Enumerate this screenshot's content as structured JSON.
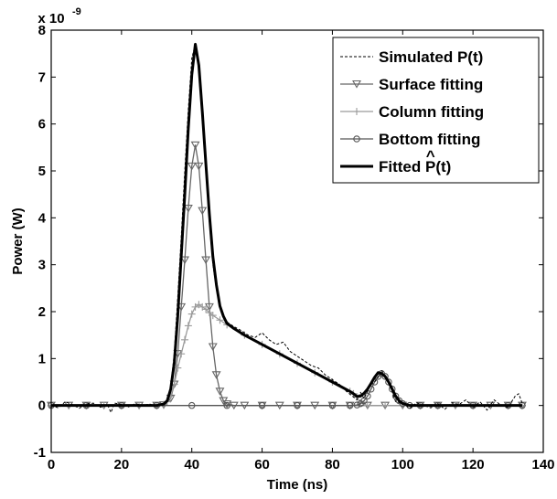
{
  "chart_data": {
    "type": "line",
    "xlabel": "Time (ns)",
    "ylabel": "Power (W)",
    "y_multiplier_label": "x 10",
    "y_multiplier_exponent": "-9",
    "xlim": [
      0,
      140
    ],
    "ylim": [
      -1,
      8
    ],
    "xticks": [
      0,
      20,
      40,
      60,
      80,
      100,
      120,
      140
    ],
    "yticks": [
      -1,
      0,
      1,
      2,
      3,
      4,
      5,
      6,
      7,
      8
    ],
    "grid": false,
    "legend_position": "top-right",
    "series": [
      {
        "name": "Simulated P(t)",
        "style": "dashed",
        "color": "#000000",
        "x": [
          0,
          2,
          4,
          6,
          8,
          10,
          12,
          14,
          16,
          17,
          18,
          20,
          22,
          24,
          26,
          28,
          30,
          32,
          33,
          34,
          35,
          36,
          37,
          38,
          39,
          40,
          41,
          42,
          43,
          44,
          45,
          46,
          47,
          48,
          49,
          50,
          52,
          54,
          56,
          58,
          60,
          62,
          64,
          66,
          68,
          70,
          72,
          74,
          76,
          78,
          80,
          82,
          84,
          86,
          87,
          88,
          89,
          90,
          91,
          92,
          93,
          94,
          95,
          96,
          97,
          98,
          100,
          102,
          104,
          106,
          108,
          110,
          112,
          114,
          116,
          118,
          120,
          122,
          124,
          126,
          128,
          130,
          132,
          133,
          134
        ],
        "y": [
          0.0,
          -0.05,
          0.08,
          0.02,
          -0.06,
          0.03,
          0.05,
          -0.04,
          0.02,
          -0.15,
          0.05,
          0.02,
          -0.03,
          0.04,
          0.0,
          0.03,
          -0.02,
          0.05,
          0.12,
          0.4,
          1.1,
          2.3,
          3.6,
          5.0,
          6.3,
          7.4,
          7.7,
          7.3,
          6.3,
          5.1,
          3.9,
          3.0,
          2.5,
          2.1,
          1.9,
          1.78,
          1.68,
          1.6,
          1.5,
          1.45,
          1.55,
          1.4,
          1.3,
          1.35,
          1.15,
          1.05,
          0.95,
          0.85,
          0.8,
          0.65,
          0.55,
          0.45,
          0.3,
          0.18,
          0.12,
          0.28,
          0.15,
          0.3,
          0.45,
          0.5,
          0.6,
          0.75,
          0.6,
          0.48,
          0.3,
          0.08,
          0.05,
          -0.06,
          0.06,
          0.0,
          -0.05,
          0.04,
          -0.08,
          0.06,
          0.02,
          0.12,
          -0.05,
          0.08,
          -0.1,
          0.12,
          0.0,
          -0.04,
          0.2,
          0.25,
          0.05
        ]
      },
      {
        "name": "Surface fitting",
        "style": "solid",
        "marker": "triangle-down",
        "color": "#666666",
        "x": [
          0,
          5,
          10,
          15,
          20,
          25,
          30,
          32,
          34,
          35,
          36,
          37,
          38,
          39,
          40,
          41,
          42,
          43,
          44,
          45,
          46,
          47,
          48,
          49,
          50,
          52,
          55,
          60,
          65,
          70,
          75,
          80,
          85,
          90,
          95,
          100,
          105,
          110,
          115,
          120,
          125,
          130,
          134
        ],
        "y": [
          0,
          0,
          0,
          0,
          0,
          0,
          0,
          0.01,
          0.15,
          0.45,
          1.1,
          2.1,
          3.1,
          4.2,
          5.1,
          5.55,
          5.1,
          4.15,
          3.1,
          2.1,
          1.25,
          0.65,
          0.3,
          0.1,
          0.03,
          0,
          0,
          0,
          0,
          0,
          0,
          0,
          0,
          0,
          0,
          0,
          0,
          0,
          0,
          0,
          0,
          0,
          0
        ]
      },
      {
        "name": "Column fitting",
        "style": "solid",
        "marker": "plus",
        "color": "#9a9a9a",
        "x": [
          0,
          5,
          10,
          15,
          20,
          25,
          30,
          32,
          33,
          34,
          35,
          36,
          37,
          38,
          39,
          40,
          41,
          42,
          43,
          44,
          45,
          46,
          48,
          50,
          55,
          60,
          65,
          70,
          75,
          80,
          85,
          86,
          87,
          88,
          90,
          95,
          100,
          105,
          110,
          115,
          120,
          125,
          130,
          134
        ],
        "y": [
          0,
          0,
          0,
          0,
          0,
          0,
          0,
          0.02,
          0.08,
          0.2,
          0.45,
          0.8,
          1.1,
          1.4,
          1.7,
          1.95,
          2.1,
          2.15,
          2.1,
          2.05,
          1.98,
          1.92,
          1.82,
          1.72,
          1.5,
          1.3,
          1.1,
          0.9,
          0.7,
          0.5,
          0.3,
          0.25,
          0.18,
          0.06,
          0,
          0,
          0,
          0,
          0,
          0,
          0,
          0,
          0,
          0
        ]
      },
      {
        "name": "Bottom fitting",
        "style": "solid",
        "marker": "circle",
        "color": "#555555",
        "x": [
          0,
          10,
          20,
          30,
          40,
          50,
          60,
          70,
          80,
          85,
          87,
          88,
          89,
          90,
          91,
          92,
          93,
          94,
          95,
          96,
          97,
          98,
          99,
          100,
          102,
          105,
          110,
          120,
          130,
          134
        ],
        "y": [
          0,
          0,
          0,
          0,
          0,
          0,
          0,
          0,
          0,
          0,
          0.01,
          0.04,
          0.1,
          0.2,
          0.35,
          0.5,
          0.62,
          0.68,
          0.62,
          0.5,
          0.35,
          0.2,
          0.1,
          0.04,
          0,
          0,
          0,
          0,
          0,
          0
        ]
      },
      {
        "name": "Fitted P(t)",
        "style": "solid",
        "color": "#000000",
        "x": [
          0,
          10,
          20,
          30,
          32,
          33,
          34,
          35,
          36,
          37,
          38,
          39,
          40,
          41,
          42,
          43,
          44,
          45,
          46,
          47,
          48,
          49,
          50,
          52,
          55,
          60,
          65,
          70,
          75,
          80,
          85,
          86,
          87,
          88,
          89,
          90,
          91,
          92,
          93,
          94,
          95,
          96,
          97,
          98,
          99,
          100,
          102,
          105,
          110,
          120,
          130,
          134
        ],
        "y": [
          0,
          0,
          0,
          0,
          0.03,
          0.1,
          0.35,
          0.9,
          1.9,
          3.2,
          4.5,
          5.9,
          7.05,
          7.7,
          7.25,
          6.25,
          5.15,
          4.08,
          3.17,
          2.57,
          2.12,
          1.9,
          1.75,
          1.64,
          1.5,
          1.3,
          1.1,
          0.9,
          0.7,
          0.5,
          0.3,
          0.25,
          0.19,
          0.2,
          0.26,
          0.35,
          0.47,
          0.6,
          0.7,
          0.68,
          0.62,
          0.5,
          0.35,
          0.2,
          0.1,
          0.04,
          0,
          0,
          0,
          0,
          0,
          0
        ]
      }
    ],
    "legend": [
      {
        "label": "Simulated P(t)"
      },
      {
        "label": "Surface fitting"
      },
      {
        "label": "Column fitting"
      },
      {
        "label": "Bottom fitting"
      },
      {
        "label_prefix": "Fitted ",
        "label_symbol": "P",
        "label_hat": "^",
        "label_suffix": "(t)"
      }
    ]
  }
}
